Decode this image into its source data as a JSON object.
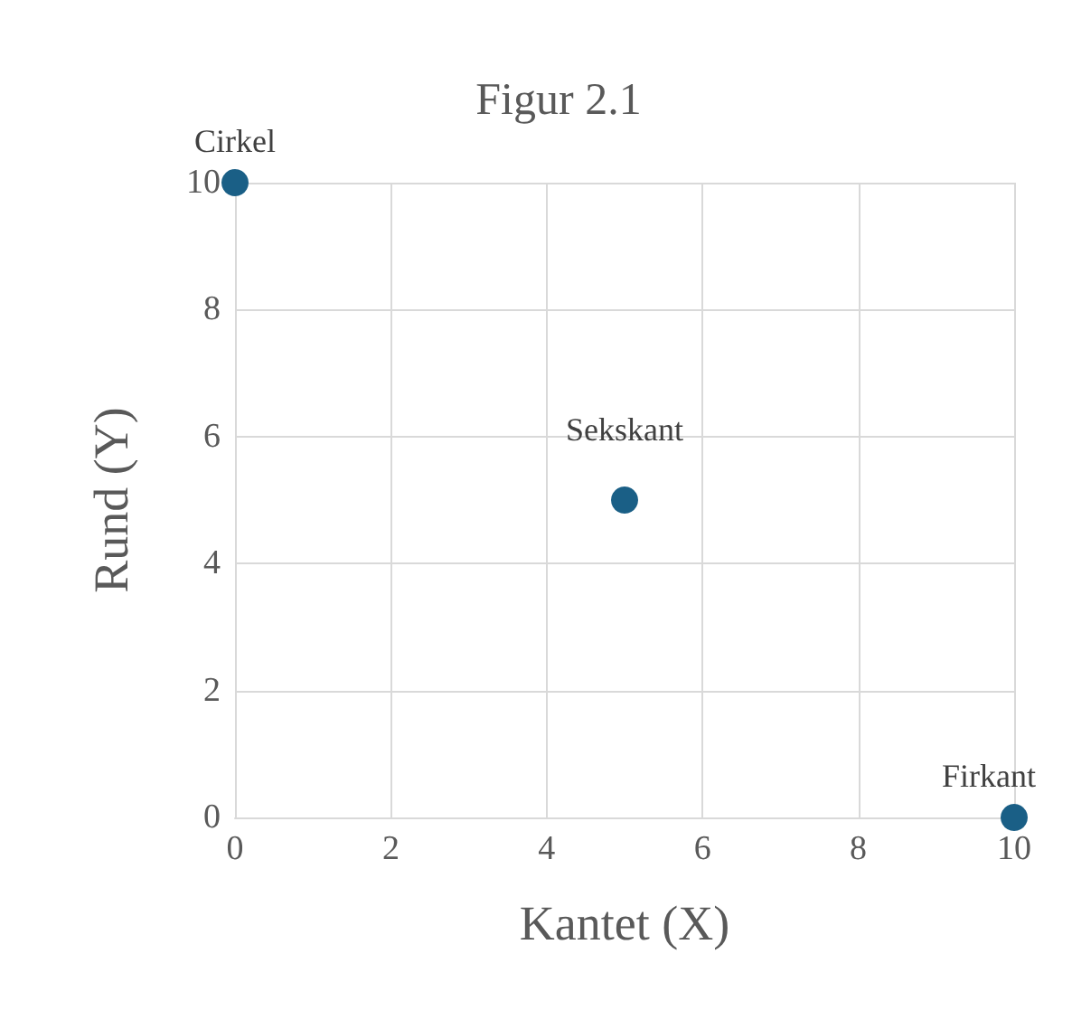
{
  "chart_data": {
    "type": "scatter",
    "title": "Figur 2.1",
    "xlabel": "Kantet (X)",
    "ylabel": "Rund (Y)",
    "x": [
      0,
      5,
      10
    ],
    "series": [
      {
        "color": "#1a5f86",
        "values": [
          10,
          5,
          0
        ]
      }
    ],
    "annotations": [
      {
        "text": "Cirkel",
        "x": 0,
        "y": 10
      },
      {
        "text": "Sekskant",
        "x": 5,
        "y": 5
      },
      {
        "text": "Firkant",
        "x": 10,
        "y": 0
      }
    ],
    "xlim": [
      0,
      10
    ],
    "xticks": [
      0,
      2,
      4,
      6,
      8,
      10
    ],
    "ylim": [
      0,
      10
    ],
    "yticks": [
      0,
      2,
      4,
      6,
      8,
      10
    ],
    "grid": true,
    "marker": "circle"
  }
}
